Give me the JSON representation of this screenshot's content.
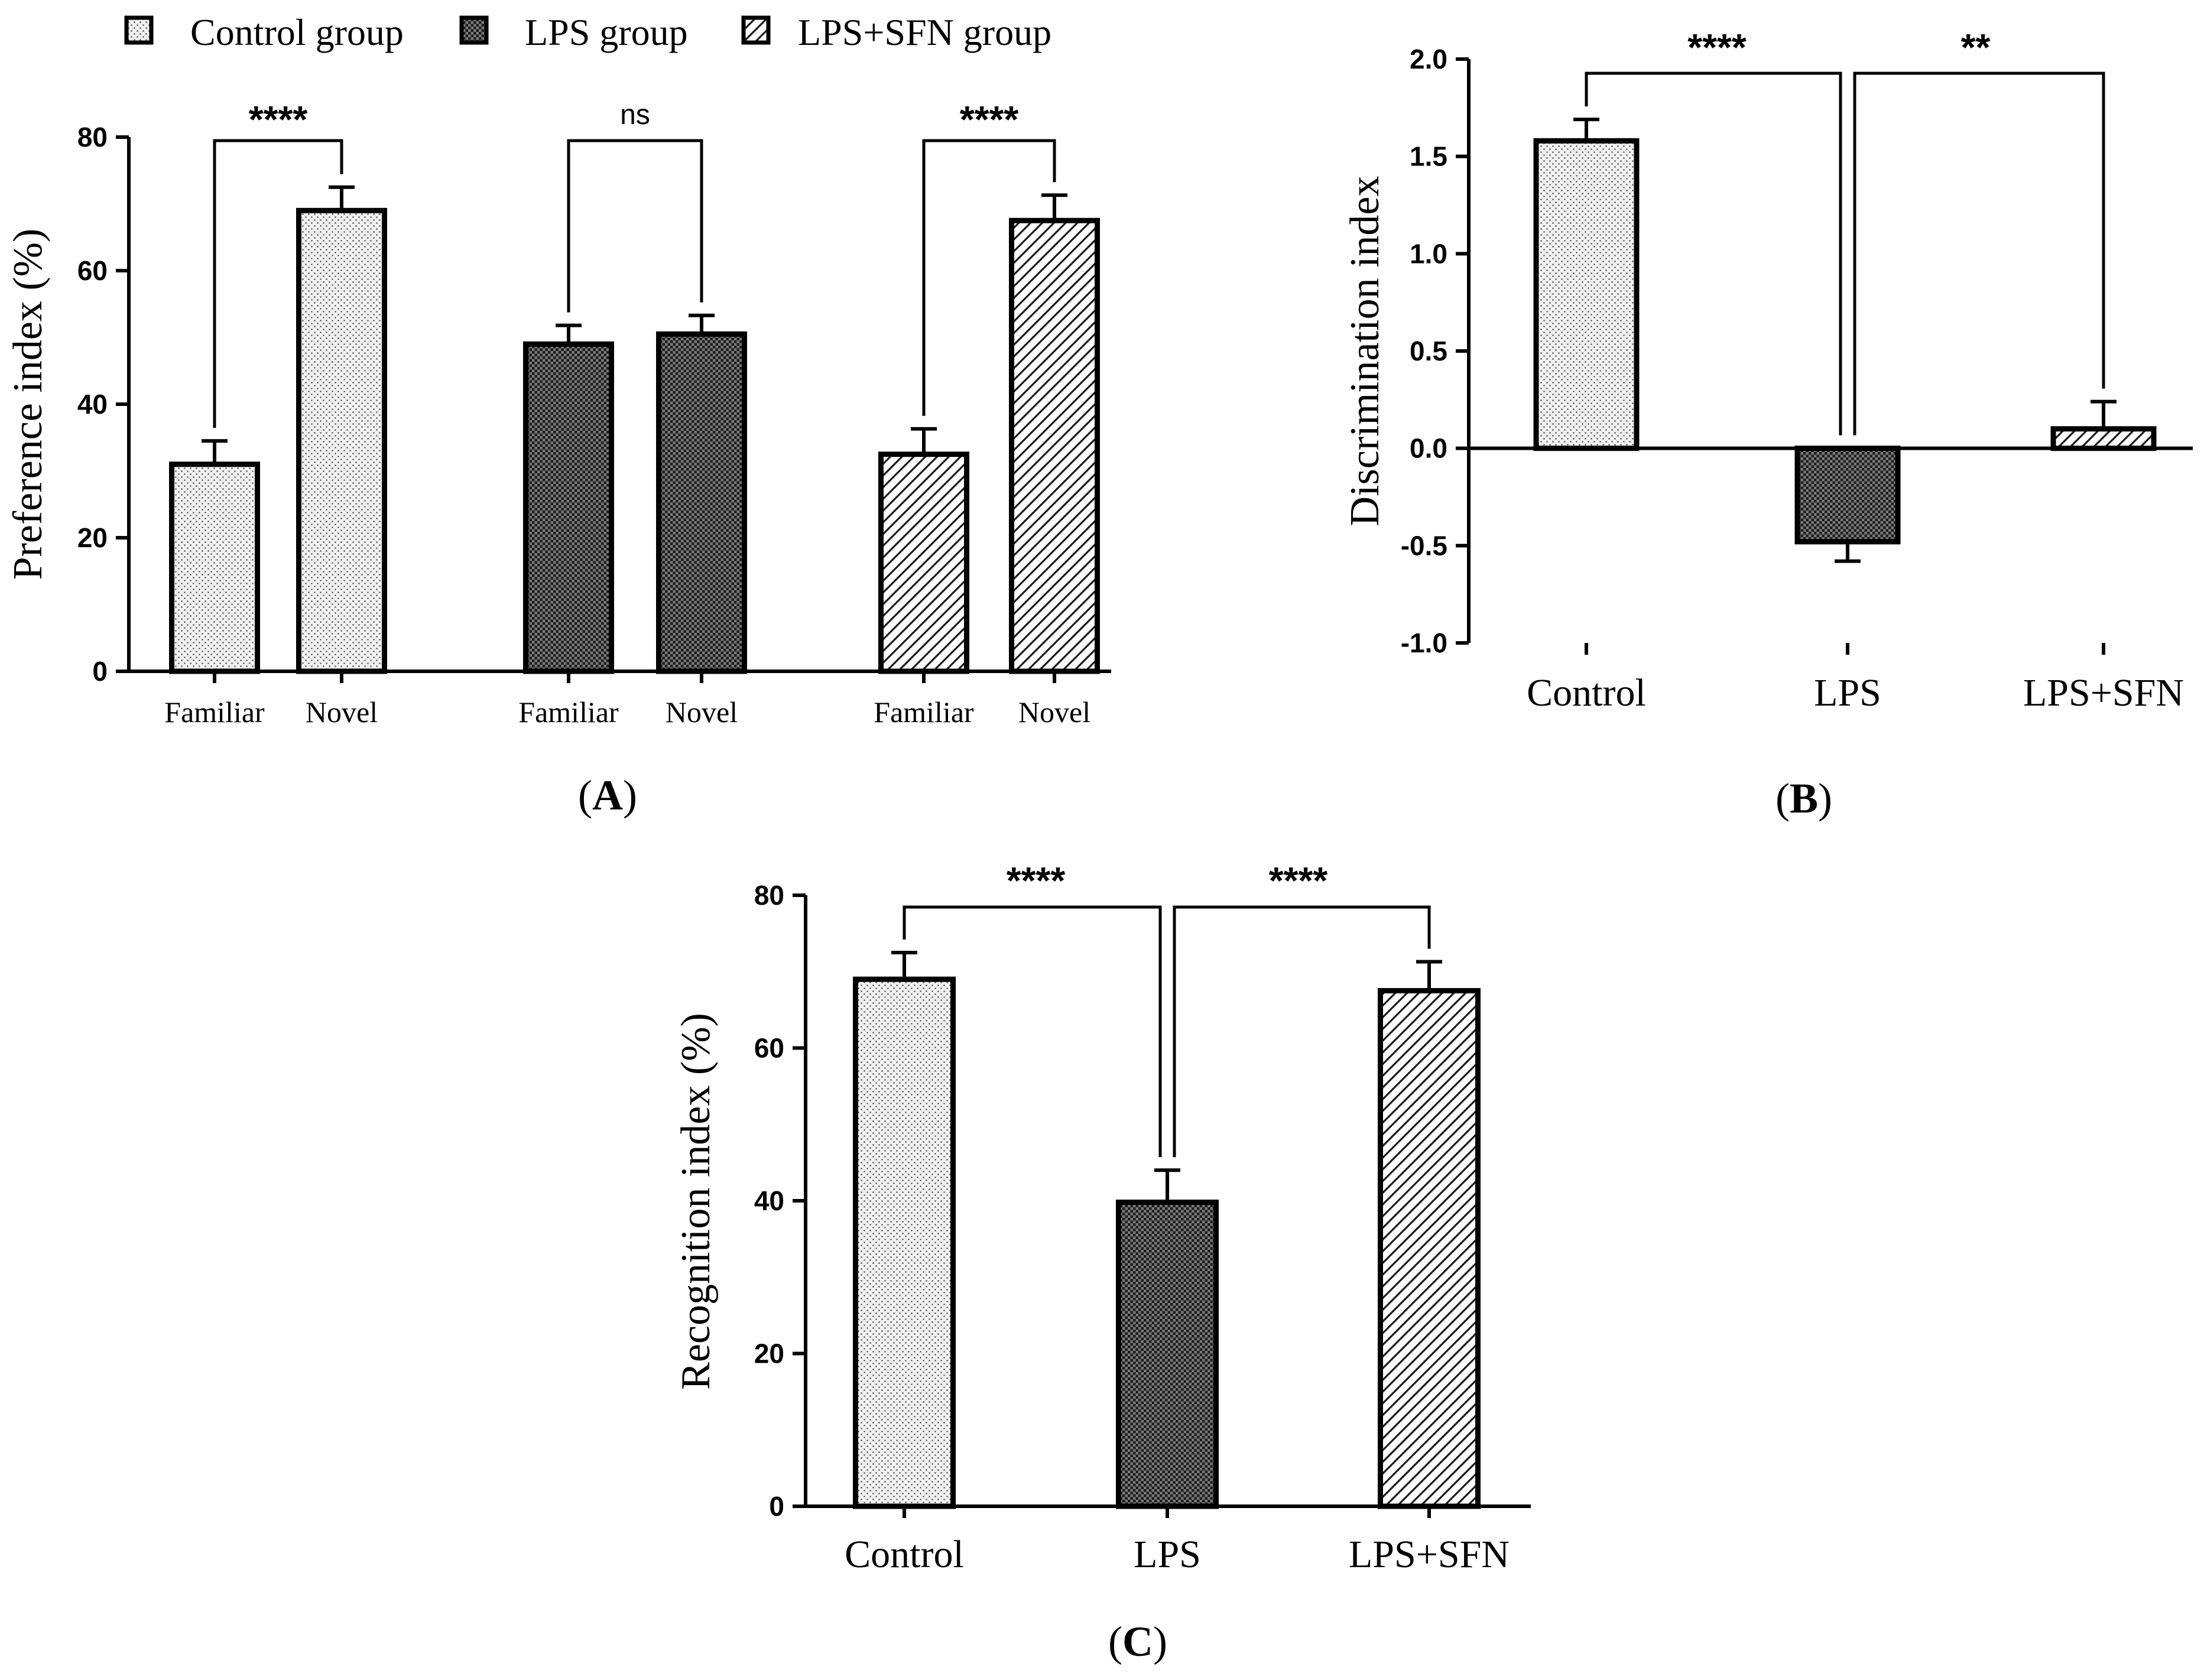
{
  "legend": {
    "items": [
      {
        "label": "Control group",
        "pattern": "dots"
      },
      {
        "label": "LPS group",
        "pattern": "grid"
      },
      {
        "label": "LPS+SFN group",
        "pattern": "hatch"
      }
    ]
  },
  "chart_data": [
    {
      "panel": "A",
      "type": "bar",
      "ylabel": "Preference index (%)",
      "ylim": [
        0,
        80
      ],
      "yticks": [
        0,
        20,
        40,
        60,
        80
      ],
      "categories": [
        "Familiar",
        "Novel",
        "Familiar",
        "Novel",
        "Familiar",
        "Novel"
      ],
      "bars": [
        {
          "group": "Control group",
          "category": "Familiar",
          "value": 31,
          "error": 3.5,
          "pattern": "dots"
        },
        {
          "group": "Control group",
          "category": "Novel",
          "value": 69,
          "error": 3.5,
          "pattern": "dots"
        },
        {
          "group": "LPS group",
          "category": "Familiar",
          "value": 49,
          "error": 2.8,
          "pattern": "grid"
        },
        {
          "group": "LPS group",
          "category": "Novel",
          "value": 50.5,
          "error": 2.8,
          "pattern": "grid"
        },
        {
          "group": "LPS+SFN group",
          "category": "Familiar",
          "value": 32.5,
          "error": 3.8,
          "pattern": "hatch"
        },
        {
          "group": "LPS+SFN group",
          "category": "Novel",
          "value": 67.5,
          "error": 3.8,
          "pattern": "hatch"
        }
      ],
      "comparisons": [
        {
          "from": 0,
          "to": 1,
          "label": "****"
        },
        {
          "from": 2,
          "to": 3,
          "label": "ns"
        },
        {
          "from": 4,
          "to": 5,
          "label": "****"
        }
      ],
      "panel_label": "A"
    },
    {
      "panel": "B",
      "type": "bar",
      "ylabel": "Discrimination index",
      "ylim": [
        -1.0,
        2.0
      ],
      "yticks": [
        -1.0,
        -0.5,
        0.0,
        0.5,
        1.0,
        1.5,
        2.0
      ],
      "yticklabels": [
        "-1.0",
        "-0.5",
        "0.0",
        "0.5",
        "1.0",
        "1.5",
        "2.0"
      ],
      "categories": [
        "Control",
        "LPS",
        "LPS+SFN"
      ],
      "bars": [
        {
          "category": "Control",
          "value": 1.58,
          "error": 0.11,
          "pattern": "dots"
        },
        {
          "category": "LPS",
          "value": -0.48,
          "error": 0.1,
          "pattern": "grid"
        },
        {
          "category": "LPS+SFN",
          "value": 0.1,
          "error": 0.14,
          "pattern": "hatch"
        }
      ],
      "comparisons": [
        {
          "from": 0,
          "to": 1,
          "label": "****"
        },
        {
          "from": 1,
          "to": 2,
          "label": "**"
        }
      ],
      "panel_label": "B"
    },
    {
      "panel": "C",
      "type": "bar",
      "ylabel": "Recognition index (%)",
      "ylim": [
        0,
        80
      ],
      "yticks": [
        0,
        20,
        40,
        60,
        80
      ],
      "categories": [
        "Control",
        "LPS",
        "LPS+SFN"
      ],
      "bars": [
        {
          "category": "Control",
          "value": 69,
          "error": 3.5,
          "pattern": "dots"
        },
        {
          "category": "LPS",
          "value": 39.8,
          "error": 4.2,
          "pattern": "grid"
        },
        {
          "category": "LPS+SFN",
          "value": 67.5,
          "error": 3.8,
          "pattern": "hatch"
        }
      ],
      "comparisons": [
        {
          "from": 0,
          "to": 1,
          "label": "****"
        },
        {
          "from": 1,
          "to": 2,
          "label": "****"
        }
      ],
      "panel_label": "C"
    }
  ]
}
